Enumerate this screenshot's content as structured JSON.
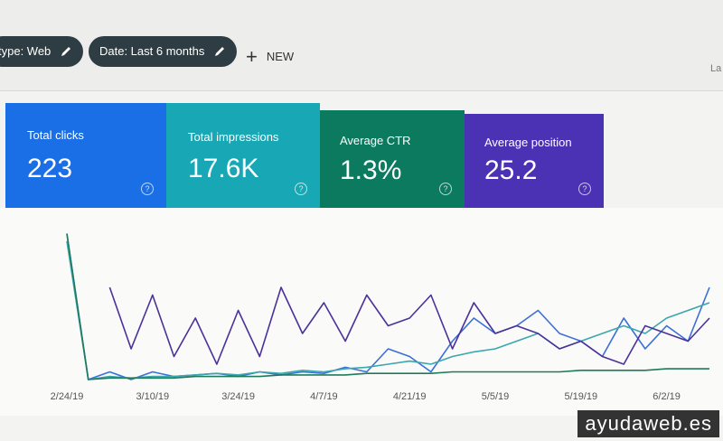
{
  "filters": [
    "type: Web",
    "Date: Last 6 months"
  ],
  "new_button": "NEW",
  "truncated": "La",
  "cards": [
    {
      "label": "Total clicks",
      "value": "223"
    },
    {
      "label": "Total impressions",
      "value": "17.6K"
    },
    {
      "label": "Average CTR",
      "value": "1.3%"
    },
    {
      "label": "Average position",
      "value": "25.2"
    }
  ],
  "watermark": "ayudaweb.es",
  "chart_data": {
    "type": "line",
    "categories": [
      "2/24/19",
      null,
      null,
      null,
      "3/10/19",
      null,
      null,
      null,
      "3/24/19",
      null,
      null,
      null,
      "4/7/19",
      null,
      null,
      null,
      "4/21/19",
      null,
      null,
      null,
      "5/5/19",
      null,
      null,
      null,
      "5/19/19",
      null,
      null,
      null,
      "6/2/19",
      null,
      null
    ],
    "ylim": [
      0,
      100
    ],
    "series": [
      {
        "name": "Total clicks",
        "color": "#3b6fd8",
        "values": [
          95,
          0,
          5,
          0,
          5,
          2,
          3,
          4,
          2,
          5,
          3,
          5,
          4,
          8,
          5,
          20,
          15,
          5,
          25,
          40,
          30,
          35,
          45,
          30,
          25,
          15,
          40,
          20,
          35,
          25,
          60
        ]
      },
      {
        "name": "Total impressions",
        "color": "#3aa7ad",
        "values": [
          90,
          0,
          2,
          1,
          2,
          2,
          3,
          4,
          3,
          5,
          4,
          6,
          5,
          7,
          8,
          10,
          12,
          10,
          15,
          18,
          20,
          25,
          30,
          20,
          25,
          30,
          35,
          30,
          40,
          45,
          50
        ]
      },
      {
        "name": "Average CTR",
        "color": "#1f7a5c",
        "values": [
          95,
          0,
          1,
          1,
          1,
          1,
          2,
          2,
          2,
          2,
          3,
          3,
          3,
          3,
          4,
          4,
          4,
          4,
          5,
          5,
          5,
          5,
          5,
          5,
          6,
          6,
          6,
          6,
          7,
          7,
          7
        ]
      },
      {
        "name": "Average position",
        "color": "#4b3199",
        "values": [
          null,
          null,
          60,
          20,
          55,
          15,
          40,
          10,
          45,
          15,
          60,
          30,
          50,
          25,
          55,
          35,
          40,
          55,
          20,
          50,
          30,
          35,
          30,
          20,
          25,
          15,
          10,
          35,
          30,
          25,
          40
        ]
      }
    ]
  }
}
